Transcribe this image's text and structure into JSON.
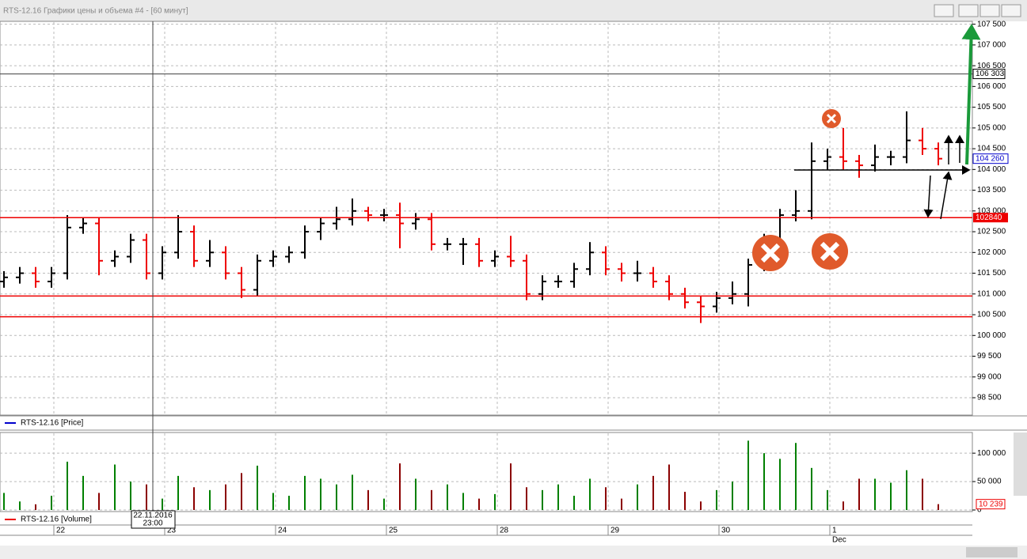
{
  "window": {
    "title": "RTS-12.16 Графики цены и объема #4 - [60 минут]"
  },
  "crosshair": {
    "value": 106303,
    "label": "106 303",
    "date": "22.11.2016",
    "time": "23:00"
  },
  "month_label": "Dec",
  "chart_data": [
    {
      "type": "ohlc",
      "legend": "RTS-12.16 [Price]",
      "legend_color": "#0000cc",
      "up_color": "#000000",
      "down_color": "#ee0000",
      "categories": [
        null,
        null,
        null,
        "22",
        null,
        null,
        null,
        null,
        null,
        null,
        "23",
        null,
        null,
        null,
        null,
        null,
        null,
        "24",
        null,
        null,
        null,
        null,
        null,
        null,
        "25",
        null,
        null,
        null,
        null,
        null,
        null,
        "28",
        null,
        null,
        null,
        null,
        null,
        null,
        "29",
        null,
        null,
        null,
        null,
        null,
        null,
        "30",
        null,
        null,
        null,
        null,
        null,
        null,
        "1",
        null,
        null,
        null,
        null,
        null,
        null,
        null
      ],
      "open": [
        101300,
        101400,
        101500,
        101300,
        101500,
        102600,
        102700,
        101800,
        101900,
        102300,
        101500,
        102000,
        102500,
        101800,
        102000,
        101500,
        101100,
        101800,
        101900,
        102000,
        102500,
        102700,
        102800,
        103000,
        102900,
        102900,
        102700,
        102800,
        102200,
        102200,
        102200,
        101800,
        101900,
        101800,
        101000,
        101300,
        101300,
        101600,
        102000,
        101600,
        101500,
        101500,
        101300,
        101000,
        100800,
        100700,
        100900,
        101000,
        101700,
        102300,
        102900,
        103000,
        104200,
        104300,
        104200,
        104100,
        104300,
        104300,
        104700,
        104500
      ],
      "high": [
        101550,
        101650,
        101650,
        101650,
        102900,
        102850,
        102850,
        102050,
        102450,
        102450,
        102150,
        102900,
        102650,
        102300,
        102150,
        101650,
        101950,
        102050,
        102150,
        102650,
        102850,
        103100,
        103300,
        103100,
        103050,
        103200,
        102950,
        102950,
        102350,
        102350,
        102350,
        102050,
        102400,
        101950,
        101450,
        101450,
        101750,
        102250,
        102150,
        101750,
        101800,
        101650,
        101450,
        101150,
        100950,
        101050,
        101300,
        101850,
        102450,
        103050,
        103500,
        104650,
        104500,
        105000,
        104350,
        104600,
        104450,
        105400,
        105000,
        104650
      ],
      "low": [
        101150,
        101250,
        101150,
        101150,
        101350,
        102450,
        101450,
        101650,
        101750,
        101350,
        101350,
        101850,
        101650,
        101650,
        101350,
        100900,
        100950,
        101650,
        101750,
        101850,
        102300,
        102550,
        102650,
        102750,
        102750,
        102100,
        102550,
        102050,
        102050,
        101700,
        101650,
        101650,
        101650,
        100850,
        100850,
        101150,
        101150,
        101450,
        101450,
        101300,
        101300,
        101150,
        100850,
        100650,
        100300,
        100550,
        100750,
        100700,
        101550,
        102150,
        102750,
        102800,
        104000,
        104000,
        103800,
        103950,
        104100,
        104150,
        104350,
        104100
      ],
      "close": [
        101400,
        101500,
        101300,
        101500,
        102600,
        102700,
        101800,
        101900,
        102300,
        101500,
        102000,
        102500,
        101800,
        102000,
        101500,
        101100,
        101800,
        101900,
        102000,
        102500,
        102700,
        102800,
        103000,
        102900,
        102900,
        102700,
        102800,
        102200,
        102200,
        102200,
        101800,
        101900,
        101800,
        101000,
        101300,
        101300,
        101600,
        102000,
        101600,
        101500,
        101500,
        101300,
        101000,
        100800,
        100700,
        100900,
        101000,
        101700,
        102300,
        102900,
        103000,
        104200,
        104300,
        104200,
        104100,
        104300,
        104300,
        104700,
        104500,
        104260
      ],
      "last_value_label": "104 260",
      "levels": [
        {
          "value": 102840,
          "color": "#ee0000",
          "labeled": true
        },
        {
          "value": 100950,
          "color": "#ee0000",
          "labeled": false
        },
        {
          "value": 100450,
          "color": "#ee0000",
          "labeled": false
        }
      ],
      "ylim": [
        98100,
        107550
      ],
      "yticks": [
        {
          "value": 98500,
          "label": "98 500"
        },
        {
          "value": 99000,
          "label": "99 000"
        },
        {
          "value": 99500,
          "label": "99 500"
        },
        {
          "value": 100000,
          "label": "100 000"
        },
        {
          "value": 100500,
          "label": "100 500"
        },
        {
          "value": 101000,
          "label": "101 000"
        },
        {
          "value": 101500,
          "label": "101 500"
        },
        {
          "value": 102000,
          "label": "102 000"
        },
        {
          "value": 102500,
          "label": "102 500"
        },
        {
          "value": 103000,
          "label": "103 000"
        },
        {
          "value": 103500,
          "label": "103 500"
        },
        {
          "value": 104000,
          "label": "104 000"
        },
        {
          "value": 104500,
          "label": "104 500"
        },
        {
          "value": 105000,
          "label": "105 000"
        },
        {
          "value": 105500,
          "label": "105 500"
        },
        {
          "value": 106000,
          "label": "106 000"
        },
        {
          "value": 106500,
          "label": "106 500"
        },
        {
          "value": 107000,
          "label": "107 000"
        },
        {
          "value": 107500,
          "label": "107 500"
        }
      ],
      "grid": true
    },
    {
      "type": "bar",
      "legend": "RTS-12.16 [Volume]",
      "legend_color": "#ee0000",
      "up_color": "#008000",
      "down_color": "#8b0000",
      "values": [
        30000,
        15000,
        10000,
        25000,
        85000,
        60000,
        30000,
        80000,
        50000,
        45000,
        20000,
        60000,
        40000,
        35000,
        45000,
        65000,
        78000,
        30000,
        25000,
        60000,
        55000,
        45000,
        62000,
        35000,
        20000,
        82000,
        55000,
        35000,
        45000,
        30000,
        20000,
        28000,
        82000,
        40000,
        35000,
        45000,
        25000,
        55000,
        40000,
        20000,
        45000,
        60000,
        80000,
        32000,
        15000,
        35000,
        50000,
        122000,
        100000,
        90000,
        118000,
        74000,
        35000,
        15000,
        55000,
        55000,
        48000,
        70000,
        55000,
        10239
      ],
      "last_value_label": "10 239",
      "ylim": [
        0,
        135000
      ],
      "yticks": [
        0,
        {
          "value": 50000,
          "label": "50 000"
        },
        {
          "value": 100000,
          "label": "100 000"
        }
      ],
      "grid": true
    }
  ]
}
